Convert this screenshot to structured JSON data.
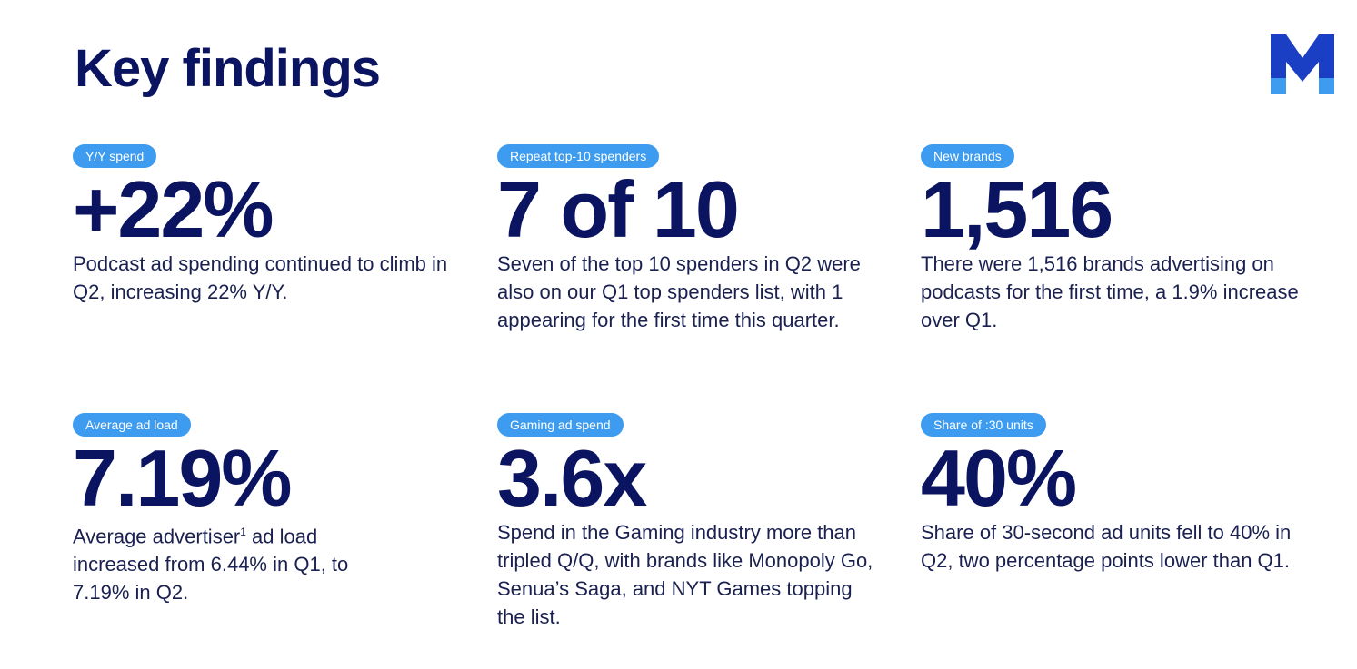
{
  "header": {
    "title": "Key findings",
    "logo_icon": "m-logo-icon"
  },
  "colors": {
    "navy": "#0b1460",
    "pill_blue": "#3d9cf0"
  },
  "findings": [
    {
      "label": "Y/Y spend",
      "stat": "+22%",
      "desc": "Podcast ad spending continued to climb in Q2, increasing 22% Y/Y."
    },
    {
      "label": "Repeat top-10 spenders",
      "stat": "7 of 10",
      "desc": "Seven of the top 10 spenders in Q2 were also on our Q1 top spenders list, with 1 appearing for the first time this quarter."
    },
    {
      "label": "New brands",
      "stat": "1,516",
      "desc": "There were 1,516 brands advertising on podcasts for the first time, a 1.9% increase over Q1."
    },
    {
      "label": "Average ad load",
      "stat": "7.19%",
      "desc_pre": "Average advertiser",
      "desc_sup": "1",
      "desc_post": " ad load increased from 6.44% in Q1, to 7.19% in Q2."
    },
    {
      "label": "Gaming ad spend",
      "stat": "3.6x",
      "desc": "Spend in the Gaming industry more than tripled Q/Q, with brands like Monopoly Go, Senua’s Saga, and NYT Games topping the list."
    },
    {
      "label": "Share of :30 units",
      "stat": "40%",
      "desc": "Share of 30-second ad units fell to 40% in Q2, two percentage points lower than Q1."
    }
  ]
}
